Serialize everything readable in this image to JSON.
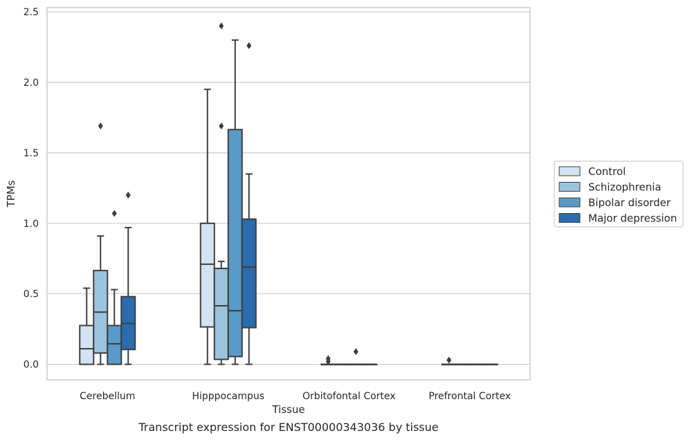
{
  "chart_data": {
    "type": "box",
    "title": "",
    "caption": "Transcript expression for ENST00000343036 by tissue",
    "xlabel": "Tissue",
    "ylabel": "TPMs",
    "ylim": [
      -0.11,
      2.53
    ],
    "yticks": [
      "0.0",
      "0.5",
      "1.0",
      "1.5",
      "2.0",
      "2.5"
    ],
    "ytick_values": [
      0,
      0.5,
      1.0,
      1.5,
      2.0,
      2.5
    ],
    "grid": "horizontal",
    "legend_position": "right",
    "categories": [
      "Cerebellum",
      "Hipppocampus",
      "Orbitofontal Cortex",
      "Prefrontal Cortex"
    ],
    "series": [
      {
        "name": "Control",
        "color": "#d4e3f3",
        "boxes": [
          {
            "whislo": 0.0,
            "q1": 0.0,
            "med": 0.11,
            "q3": 0.275,
            "whishi": 0.54,
            "fliers": []
          },
          {
            "whislo": 0.0,
            "q1": 0.265,
            "med": 0.71,
            "q3": 1.0,
            "whishi": 1.95,
            "fliers": []
          },
          {
            "whislo": 0.0,
            "q1": 0.0,
            "med": 0.0,
            "q3": 0.0,
            "whishi": 0.0,
            "fliers": [
              0.02,
              0.04
            ]
          },
          {
            "whislo": 0.0,
            "q1": 0.0,
            "med": 0.0,
            "q3": 0.0,
            "whishi": 0.0,
            "fliers": [
              0.03
            ]
          }
        ]
      },
      {
        "name": "Schizophrenia",
        "color": "#9ac4de",
        "boxes": [
          {
            "whislo": 0.0,
            "q1": 0.08,
            "med": 0.37,
            "q3": 0.665,
            "whishi": 0.91,
            "fliers": [
              1.69
            ]
          },
          {
            "whislo": 0.0,
            "q1": 0.035,
            "med": 0.415,
            "q3": 0.68,
            "whishi": 0.73,
            "fliers": [
              1.69,
              2.4
            ]
          },
          {
            "whislo": 0.0,
            "q1": 0.0,
            "med": 0.0,
            "q3": 0.0,
            "whishi": 0.0,
            "fliers": []
          },
          {
            "whislo": 0.0,
            "q1": 0.0,
            "med": 0.0,
            "q3": 0.0,
            "whishi": 0.0,
            "fliers": []
          }
        ]
      },
      {
        "name": "Bipolar disorder",
        "color": "#5a9ac7",
        "boxes": [
          {
            "whislo": 0.0,
            "q1": 0.0,
            "med": 0.145,
            "q3": 0.275,
            "whishi": 0.53,
            "fliers": [
              1.07
            ]
          },
          {
            "whislo": 0.0,
            "q1": 0.055,
            "med": 0.38,
            "q3": 1.665,
            "whishi": 2.3,
            "fliers": []
          },
          {
            "whislo": 0.0,
            "q1": 0.0,
            "med": 0.0,
            "q3": 0.0,
            "whishi": 0.0,
            "fliers": [
              0.09
            ]
          },
          {
            "whislo": 0.0,
            "q1": 0.0,
            "med": 0.0,
            "q3": 0.0,
            "whishi": 0.0,
            "fliers": []
          }
        ]
      },
      {
        "name": "Major depression",
        "color": "#2a6cad",
        "boxes": [
          {
            "whislo": 0.0,
            "q1": 0.105,
            "med": 0.29,
            "q3": 0.48,
            "whishi": 0.97,
            "fliers": [
              1.2
            ]
          },
          {
            "whislo": 0.0,
            "q1": 0.26,
            "med": 0.69,
            "q3": 1.03,
            "whishi": 1.35,
            "fliers": [
              2.26
            ]
          },
          {
            "whislo": 0.0,
            "q1": 0.0,
            "med": 0.0,
            "q3": 0.0,
            "whishi": 0.0,
            "fliers": []
          },
          {
            "whislo": 0.0,
            "q1": 0.0,
            "med": 0.0,
            "q3": 0.0,
            "whishi": 0.0,
            "fliers": []
          }
        ]
      }
    ]
  }
}
